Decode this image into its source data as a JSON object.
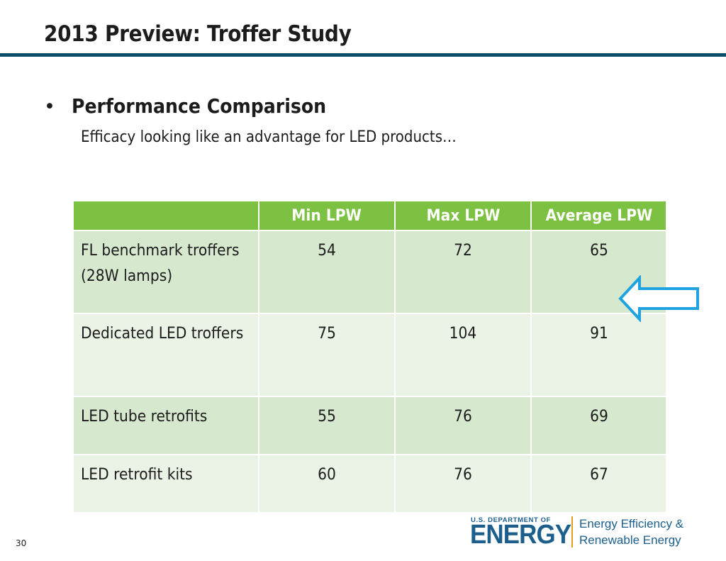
{
  "slide": {
    "title": "2013 Preview: Troffer Study",
    "bullet": "•",
    "heading": "Performance Comparison",
    "subtext": "Efficacy looking like an advantage for LED products…",
    "page_number": "30"
  },
  "table": {
    "headers": [
      "",
      "Min LPW",
      "Max LPW",
      "Average LPW"
    ],
    "rows": [
      {
        "label": "FL benchmark troffers (28W lamps)",
        "min": "54",
        "max": "72",
        "avg": "65"
      },
      {
        "label": "Dedicated LED troffers",
        "min": "75",
        "max": "104",
        "avg": "91"
      },
      {
        "label": "LED tube retrofits",
        "min": "55",
        "max": "76",
        "avg": "69"
      },
      {
        "label": "LED retrofit kits",
        "min": "60",
        "max": "76",
        "avg": "67"
      }
    ]
  },
  "arrow": {
    "icon": "left-arrow-icon",
    "color": "#1fa3e0"
  },
  "logo": {
    "department": "U.S. DEPARTMENT OF",
    "agency": "ENERGY",
    "office_line1": "Energy Efficiency &",
    "office_line2": "Renewable Energy"
  },
  "colors": {
    "title_rule": "#0d4f6b",
    "header_green": "#7dc142",
    "row_dark": "#d6e9cf",
    "row_light": "#eaf3e6",
    "logo_blue": "#1c5f8c",
    "logo_divider": "#e1a01e"
  }
}
